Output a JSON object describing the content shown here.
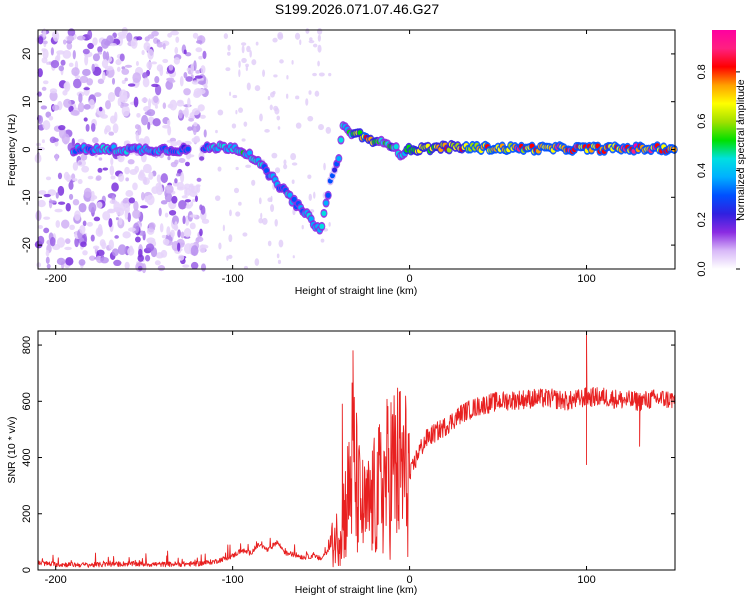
{
  "figure_title": "S199.2026.071.07.46.G27",
  "chart_data": [
    {
      "type": "heatmap",
      "title": "S199.2026.071.07.46.G27",
      "xlabel": "Height of straight line (km)",
      "ylabel": "Frequency (Hz)",
      "xlim": [
        -210,
        150
      ],
      "ylim": [
        -25,
        25
      ],
      "xticks": [
        -200,
        -100,
        0,
        100
      ],
      "yticks": [
        -20,
        -10,
        0,
        10,
        20
      ],
      "colorbar": {
        "label": "Normalized spectral amplitude",
        "range": [
          0,
          0.97
        ],
        "ticks": [
          "0.0",
          "0.2",
          "0.4",
          "0.6",
          "0.8"
        ],
        "colormap": [
          "#ffffff",
          "#d8b8f8",
          "#8a2be2",
          "#3020e0",
          "#0050ff",
          "#00b0ff",
          "#00e0e0",
          "#00e000",
          "#a0e000",
          "#ffff00",
          "#ffa000",
          "#ff0000",
          "#ff2080",
          "#ff00a0"
        ]
      },
      "ridge": {
        "x": [
          -190,
          -170,
          -150,
          -130,
          -118,
          -110,
          -100,
          -90,
          -80,
          -70,
          -60,
          -50,
          -45,
          -40,
          -38,
          -35,
          -30,
          -25,
          -20,
          -15,
          -10,
          -5,
          0,
          20,
          50,
          80,
          100,
          120,
          150
        ],
        "freq": [
          0,
          0,
          0,
          0,
          0,
          0.5,
          0.5,
          -1,
          -5,
          -9,
          -13,
          -17,
          -7,
          -2,
          5,
          4,
          3,
          3,
          1,
          2,
          1,
          -1,
          0,
          0.5,
          0.3,
          0.2,
          0.2,
          0.2,
          0.2
        ],
        "amplitude": [
          0.35,
          0.45,
          0.4,
          0.35,
          0.3,
          0.45,
          0.5,
          0.45,
          0.4,
          0.4,
          0.4,
          0.45,
          0.3,
          0.35,
          0.45,
          0.5,
          0.6,
          0.85,
          0.6,
          0.5,
          0.55,
          0.45,
          0.6,
          0.75,
          0.8,
          0.85,
          0.88,
          0.88,
          0.88
        ]
      }
    },
    {
      "type": "line",
      "xlabel": "Height of straight line (km)",
      "ylabel": "SNR (10 * v/v)",
      "xlim": [
        -210,
        150
      ],
      "ylim": [
        0,
        850
      ],
      "xticks": [
        -200,
        -100,
        0,
        100
      ],
      "yticks": [
        0,
        200,
        400,
        600,
        800
      ],
      "color": "#e82020",
      "series": [
        {
          "name": "SNR",
          "x": [
            -210,
            -200,
            -180,
            -160,
            -140,
            -120,
            -110,
            -100,
            -95,
            -90,
            -85,
            -80,
            -75,
            -70,
            -65,
            -60,
            -55,
            -50,
            -45,
            -40,
            -35,
            -32,
            -30,
            -28,
            -25,
            -20,
            -15,
            -10,
            -5,
            0,
            5,
            10,
            15,
            20,
            30,
            40,
            50,
            60,
            70,
            80,
            90,
            100,
            110,
            120,
            130,
            140,
            150
          ],
          "values": [
            25,
            20,
            18,
            22,
            20,
            22,
            30,
            50,
            70,
            60,
            90,
            70,
            100,
            60,
            55,
            45,
            50,
            40,
            80,
            130,
            250,
            400,
            300,
            230,
            200,
            250,
            300,
            360,
            360,
            330,
            420,
            470,
            490,
            510,
            560,
            585,
            600,
            605,
            610,
            610,
            600,
            615,
            615,
            605,
            600,
            610,
            605
          ],
          "spikes": [
            {
              "x": -32,
              "y": 780
            },
            {
              "x": -38,
              "y": 590
            },
            {
              "x": 100,
              "y": 845
            },
            {
              "x": 100,
              "y": 375
            },
            {
              "x": 130,
              "y": 440
            }
          ]
        }
      ]
    }
  ]
}
